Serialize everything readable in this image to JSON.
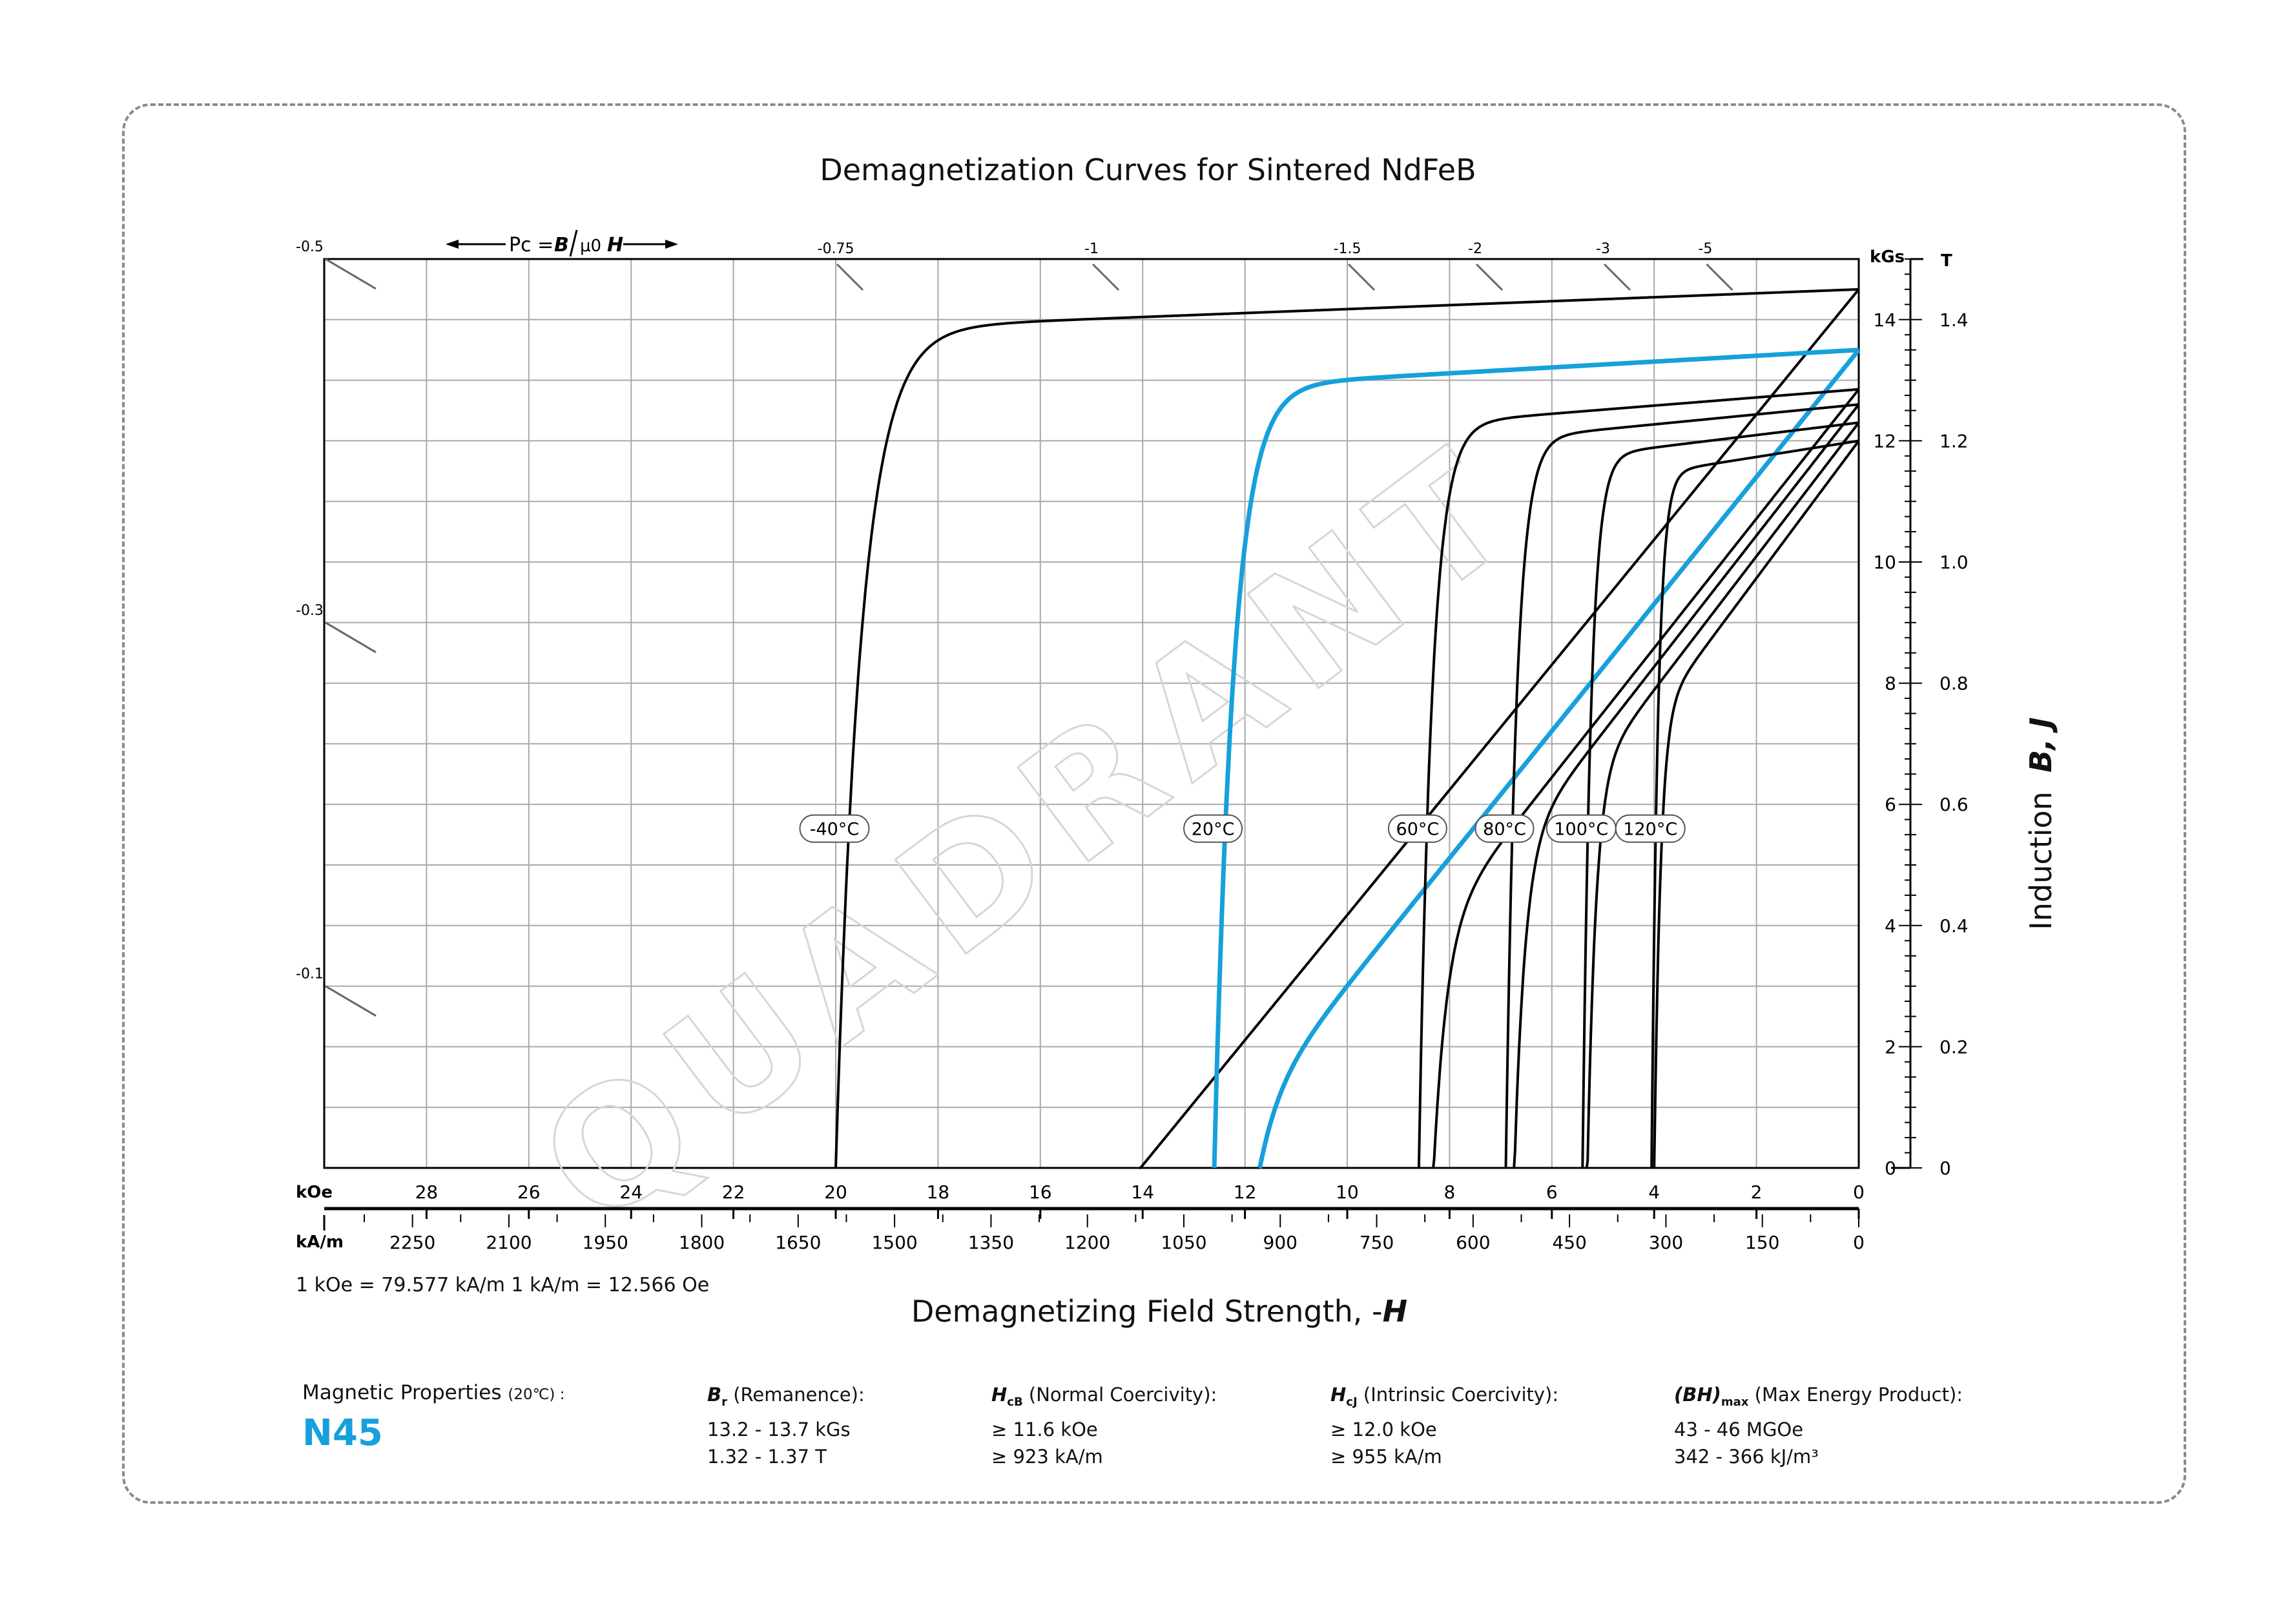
{
  "title": "Demagnetization Curves for Sintered NdFeB",
  "x_axis_title": "Demagnetizing Field Strength, -",
  "x_axis_title_symbol": "H",
  "y_axis_title": "Induction",
  "y_axis_title_symbols": "B, J",
  "conversion_note": "1 kOe = 79.577 kA/m   1 kA/m = 12.566 Oe",
  "pc_label": {
    "prefix": "Pc = ",
    "b": "B",
    "mu": "μ0",
    "h": "H"
  },
  "properties": {
    "label": "Magnetic Properties",
    "label_temp": "(20℃) :",
    "grade": "N45",
    "br": {
      "sym": "B",
      "sub": "r",
      "name": "(Remanence):",
      "v1": "13.2 - 13.7 kGs",
      "v2": "1.32 - 1.37 T"
    },
    "hcb": {
      "sym": "H",
      "sub": "cB",
      "name": "(Normal Coercivity):",
      "v1": "≥ 11.6 kOe",
      "v2": "≥ 923 kA/m"
    },
    "hcj": {
      "sym": "H",
      "sub": "cJ",
      "name": "(Intrinsic Coercivity):",
      "v1": "≥ 12.0 kOe",
      "v2": "≥ 955 kA/m"
    },
    "bhmax": {
      "sym": "(BH)",
      "sub": "max",
      "name": "(Max Energy Product):",
      "v1": "43 - 46 MGOe",
      "v2": "342 - 366 kJ/m³"
    }
  },
  "colors": {
    "accent": "#16a0dc",
    "curve": "#000000",
    "grid": "#9a9a9a"
  },
  "chart_data": {
    "type": "line",
    "x_unit_top": "kOe",
    "x_unit_bottom": "kA/m",
    "y_unit_left": "kGs",
    "y_unit_right": "T",
    "xlim": [
      30,
      0
    ],
    "ylim": [
      0,
      15
    ],
    "x_ticks_koe": [
      28,
      26,
      24,
      22,
      20,
      18,
      16,
      14,
      12,
      10,
      8,
      6,
      4,
      2,
      0
    ],
    "x_ticks_kam": [
      2250,
      2100,
      1950,
      1800,
      1650,
      1500,
      1350,
      1200,
      1050,
      900,
      750,
      600,
      450,
      300,
      150,
      0
    ],
    "y_ticks_kgs": [
      0,
      2,
      4,
      6,
      8,
      10,
      12,
      14
    ],
    "y_ticks_t": [
      "0",
      "0.2",
      "0.4",
      "0.6",
      "0.8",
      "1.0",
      "1.2",
      "1.4"
    ],
    "permeance_labels": [
      {
        "label": "-0.5",
        "edge": "left",
        "y": 15.0
      },
      {
        "label": "-0.3",
        "edge": "left",
        "y": 9.0
      },
      {
        "label": "-0.1",
        "edge": "left",
        "y": 3.0
      },
      {
        "label": "-0.75",
        "edge": "top",
        "x": 20.0
      },
      {
        "label": "-1",
        "edge": "top",
        "x": 15.0
      },
      {
        "label": "-1.5",
        "edge": "top",
        "x": 10.0
      },
      {
        "label": "-2",
        "edge": "top",
        "x": 7.5
      },
      {
        "label": "-3",
        "edge": "top",
        "x": 5.0
      },
      {
        "label": "-5",
        "edge": "top",
        "x": 3.0
      }
    ],
    "grid": true,
    "series": [
      {
        "name": "-40°C",
        "highlight": false,
        "br": 14.5,
        "hcb": 14.1,
        "hcj": 20.0,
        "label_y": 5.6
      },
      {
        "name": "20°C",
        "highlight": true,
        "br": 13.5,
        "hcb": 11.6,
        "hcj": 12.6,
        "label_y": 5.6
      },
      {
        "name": "60°C",
        "highlight": false,
        "br": 12.85,
        "hcb": 8.5,
        "hcj": 8.6,
        "label_y": 5.6
      },
      {
        "name": "80°C",
        "highlight": false,
        "br": 12.6,
        "hcb": 7.4,
        "hcj": 6.9,
        "label_y": 5.6
      },
      {
        "name": "100°C",
        "highlight": false,
        "br": 12.3,
        "hcb": 6.4,
        "hcj": 5.4,
        "label_y": 5.6
      },
      {
        "name": "120°C",
        "highlight": false,
        "br": 12.0,
        "hcb": 5.7,
        "hcj": 4.05,
        "label_y": 5.6
      }
    ]
  }
}
